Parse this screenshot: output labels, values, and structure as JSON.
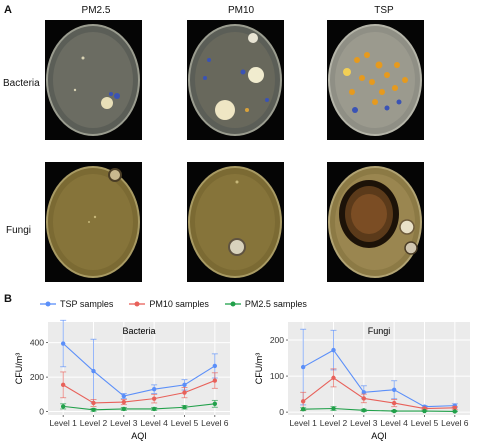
{
  "figure": {
    "panel_a_label": "A",
    "panel_b_label": "B",
    "columns": [
      "PM2.5",
      "PM10",
      "TSP"
    ],
    "rows": [
      "Bacteria",
      "Fungi"
    ],
    "legend": [
      {
        "label": "TSP samples",
        "color": "#5b8ff9"
      },
      {
        "label": "PM10 samples",
        "color": "#e8615a"
      },
      {
        "label": "PM2.5 samples",
        "color": "#21a04a"
      }
    ]
  },
  "chart_data": [
    {
      "type": "line",
      "title": "Bacteria",
      "xlabel": "AQI",
      "ylabel": "CFU/m³",
      "categories": [
        "Level 1",
        "Level 2",
        "Level 3",
        "Level 4",
        "Level 5",
        "Level 6"
      ],
      "ylim": [
        -20,
        520
      ],
      "yticks": [
        0,
        200,
        400
      ],
      "grid": true,
      "series": [
        {
          "name": "TSP samples",
          "color": "#5b8ff9",
          "values": [
            395,
            235,
            90,
            130,
            155,
            265
          ],
          "err": [
            135,
            185,
            15,
            25,
            30,
            70
          ]
        },
        {
          "name": "PM10 samples",
          "color": "#e8615a",
          "values": [
            155,
            50,
            55,
            75,
            110,
            180
          ],
          "err": [
            75,
            20,
            15,
            25,
            30,
            45
          ]
        },
        {
          "name": "PM2.5 samples",
          "color": "#21a04a",
          "values": [
            30,
            10,
            15,
            15,
            25,
            45
          ],
          "err": [
            15,
            8,
            8,
            8,
            10,
            20
          ]
        }
      ]
    },
    {
      "type": "line",
      "title": "Fungi",
      "xlabel": "AQI",
      "ylabel": "CFU/m³",
      "categories": [
        "Level 1",
        "Level 2",
        "Level 3",
        "Level 4",
        "Level 5",
        "Level 6"
      ],
      "ylim": [
        -8,
        250
      ],
      "yticks": [
        0,
        100,
        200
      ],
      "grid": true,
      "series": [
        {
          "name": "TSP samples",
          "color": "#5b8ff9",
          "values": [
            125,
            172,
            55,
            62,
            15,
            18
          ],
          "err": [
            105,
            55,
            18,
            25,
            3,
            5
          ]
        },
        {
          "name": "PM10 samples",
          "color": "#e8615a",
          "values": [
            30,
            95,
            38,
            25,
            10,
            12
          ],
          "err": [
            25,
            25,
            12,
            10,
            3,
            4
          ]
        },
        {
          "name": "PM2.5 samples",
          "color": "#21a04a",
          "values": [
            8,
            10,
            5,
            3,
            3,
            2
          ],
          "err": [
            4,
            5,
            3,
            2,
            1,
            1
          ]
        }
      ]
    }
  ]
}
